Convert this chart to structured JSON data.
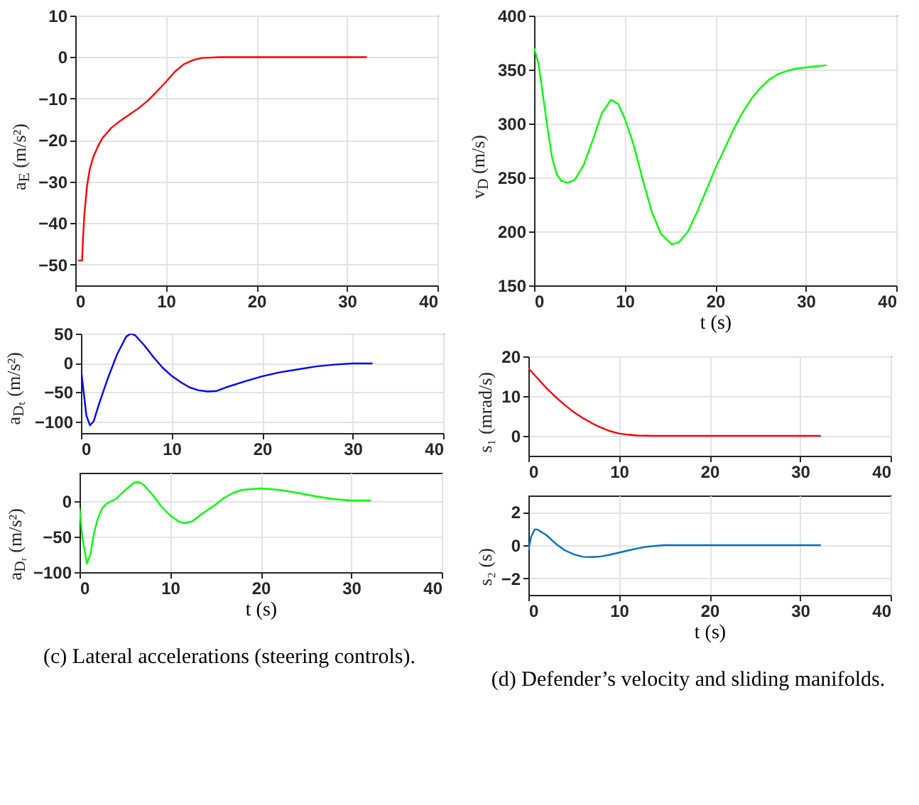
{
  "chart_data": [
    {
      "type": "line",
      "ylabel": "a$_{E}$ (m/s²)",
      "xlim": [
        0,
        40
      ],
      "xticks": [
        0,
        10,
        20,
        30,
        40
      ],
      "ylim": [
        -55,
        10
      ],
      "yticks": [
        -50,
        -40,
        -30,
        -20,
        -10,
        0,
        10
      ],
      "grid": true,
      "series": [
        {
          "color": "#ff0000",
          "x": [
            0.3,
            0.75,
            0.85,
            1,
            1.3,
            1.6,
            2,
            2.5,
            3,
            4,
            5,
            6,
            7,
            8,
            9,
            10,
            11,
            12,
            13,
            14,
            16,
            20,
            32.2
          ],
          "values": [
            -49,
            -49,
            -44,
            -38,
            -31,
            -27,
            -24,
            -21.5,
            -19.5,
            -17,
            -15.3,
            -13.8,
            -12.3,
            -10.5,
            -8.3,
            -6,
            -3.5,
            -1.7,
            -0.7,
            -0.2,
            0,
            0,
            0
          ]
        }
      ]
    },
    {
      "type": "line",
      "xlabel": "t (s)",
      "ylabel": "v$_{D}$ (m/s)",
      "xlim": [
        0,
        40
      ],
      "xticks": [
        0,
        10,
        20,
        30,
        40
      ],
      "ylim": [
        150,
        400
      ],
      "yticks": [
        150,
        200,
        250,
        300,
        350,
        400
      ],
      "grid": true,
      "series": [
        {
          "color": "#00ff00",
          "x": [
            0,
            0.5,
            1,
            1.5,
            2,
            2.5,
            3,
            3.7,
            4.5,
            5.5,
            6.5,
            7.5,
            8.5,
            9.3,
            10,
            11,
            12,
            13,
            14,
            15.2,
            16,
            17,
            18,
            19,
            20,
            21,
            22,
            23,
            24,
            25,
            26,
            27,
            28,
            29,
            30,
            31,
            32.3
          ],
          "values": [
            370,
            355,
            325,
            295,
            268,
            253,
            247,
            245,
            248,
            262,
            285,
            310,
            322,
            318,
            305,
            280,
            248,
            218,
            198,
            188,
            190,
            200,
            218,
            238,
            258,
            276,
            294,
            310,
            323,
            333,
            341,
            346,
            349,
            351,
            352,
            353,
            354
          ]
        }
      ]
    },
    {
      "type": "line",
      "ylabel": "a$_{Dₜ}$ (m/s²)",
      "xlim": [
        0,
        40
      ],
      "xticks": [
        0,
        10,
        20,
        30,
        40
      ],
      "ylim": [
        -120,
        50
      ],
      "yticks": [
        -100,
        -50,
        0,
        50
      ],
      "grid": true,
      "series": [
        {
          "color": "#0000ff",
          "x": [
            0,
            0.3,
            0.6,
            1,
            1.4,
            2,
            3,
            4,
            5,
            5.5,
            6,
            7,
            8,
            9,
            10,
            11,
            12,
            13,
            14,
            15,
            16,
            18,
            20,
            22,
            24,
            26,
            28,
            30,
            32.2
          ],
          "values": [
            -10,
            -50,
            -90,
            -107,
            -100,
            -70,
            -25,
            15,
            45,
            50,
            47,
            30,
            10,
            -8,
            -22,
            -33,
            -42,
            -47,
            -49,
            -48,
            -42,
            -32,
            -23,
            -16,
            -11,
            -6,
            -3,
            -1,
            -1
          ]
        }
      ]
    },
    {
      "type": "line",
      "ylabel": "s₁ (mrad/s)",
      "xlim": [
        0,
        40
      ],
      "xticks": [
        0,
        10,
        20,
        30,
        40
      ],
      "ylim": [
        -5,
        20
      ],
      "yticks": [
        0,
        10,
        20
      ],
      "grid": true,
      "series": [
        {
          "color": "#ff0000",
          "x": [
            0,
            1,
            2,
            3,
            4,
            5,
            6,
            7,
            8,
            9,
            10,
            11,
            12,
            14,
            32.3
          ],
          "values": [
            17,
            14.5,
            12,
            9.8,
            7.8,
            6,
            4.5,
            3.2,
            2.1,
            1.2,
            0.6,
            0.3,
            0.1,
            0,
            0
          ]
        }
      ]
    },
    {
      "type": "line",
      "xlabel": "t (s)",
      "ylabel": "a$_{Dᵣ}$ (m/s²)",
      "xlim": [
        0,
        40
      ],
      "xticks": [
        0,
        10,
        20,
        30,
        40
      ],
      "ylim": [
        -100,
        40
      ],
      "yticks": [
        -100,
        -50,
        0
      ],
      "grid": true,
      "annotations": [
        "(c) Lateral accelerations (steering controls)."
      ],
      "series": [
        {
          "color": "#00ff00",
          "x": [
            0,
            0.3,
            0.8,
            1.2,
            1.6,
            2,
            2.5,
            3,
            4,
            5,
            6,
            6.5,
            7,
            8,
            9,
            10,
            11,
            11.7,
            12.5,
            13.5,
            15,
            16,
            17,
            18,
            20,
            22,
            24,
            26,
            28,
            30,
            32.2
          ],
          "values": [
            -10,
            -50,
            -88,
            -75,
            -45,
            -25,
            -10,
            -3,
            3,
            15,
            26,
            27,
            24,
            10,
            -7,
            -20,
            -29,
            -31,
            -28,
            -18,
            -5,
            5,
            12,
            16,
            18,
            16,
            12,
            7,
            3,
            1,
            1
          ]
        }
      ]
    },
    {
      "type": "line",
      "xlabel": "t (s)",
      "ylabel": "s₂ (s)",
      "xlim": [
        0,
        40
      ],
      "xticks": [
        0,
        10,
        20,
        30,
        40
      ],
      "ylim": [
        -3,
        3
      ],
      "yticks": [
        -2,
        0,
        2
      ],
      "grid": true,
      "annotations": [
        "(d) Defender’s velocity and sliding manifolds."
      ],
      "series": [
        {
          "color": "#0072bd",
          "x": [
            0,
            0.3,
            0.7,
            1,
            2,
            3,
            4,
            5,
            6,
            7,
            8,
            9,
            10,
            11,
            12,
            13,
            14,
            15,
            32.3
          ],
          "values": [
            -0.3,
            0.5,
            0.95,
            0.95,
            0.6,
            0.1,
            -0.3,
            -0.55,
            -0.7,
            -0.72,
            -0.68,
            -0.58,
            -0.45,
            -0.32,
            -0.2,
            -0.1,
            -0.04,
            0,
            0
          ]
        }
      ]
    }
  ]
}
